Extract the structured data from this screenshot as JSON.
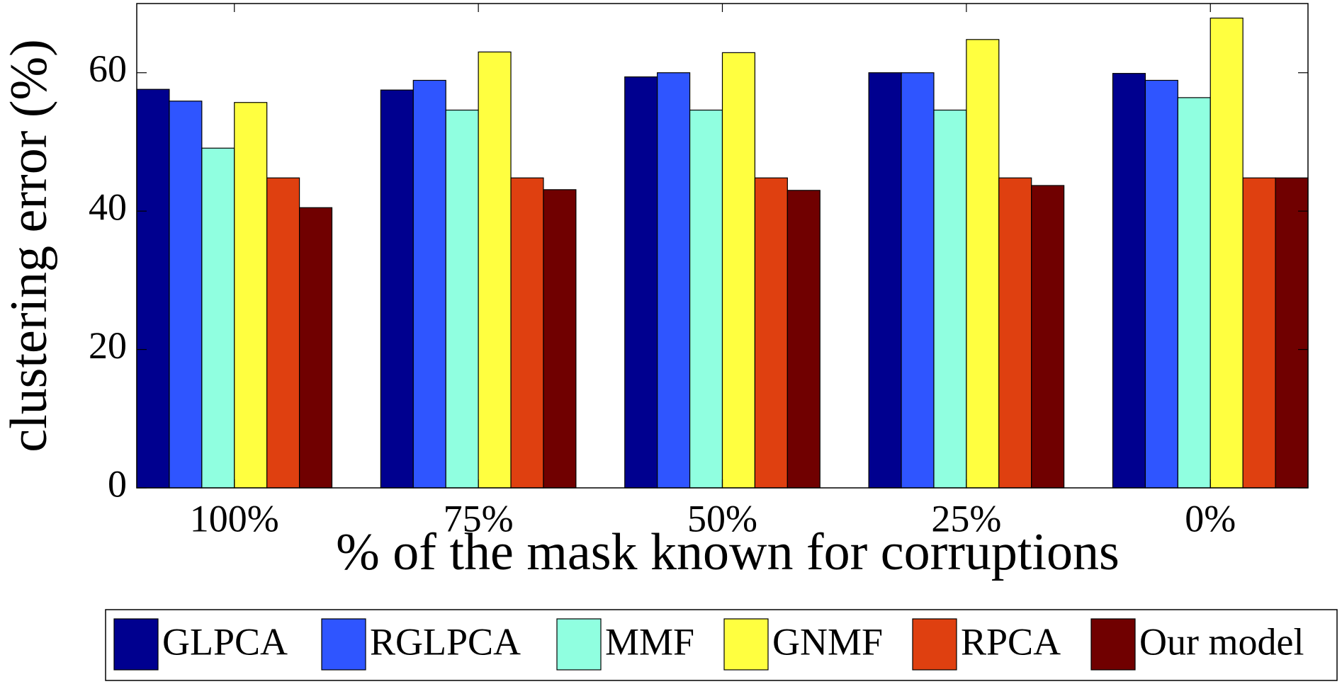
{
  "chart_data": {
    "type": "bar",
    "xlabel": "% of the mask known for corruptions",
    "ylabel": "clustering error (%)",
    "categories": [
      "100%",
      "75%",
      "50%",
      "25%",
      "0%"
    ],
    "series": [
      {
        "name": "GLPCA",
        "color": "#00008f",
        "values": [
          57.6,
          57.5,
          59.4,
          60,
          59.9
        ]
      },
      {
        "name": "RGLPCA",
        "color": "#2f55ff",
        "values": [
          55.9,
          58.9,
          60,
          60,
          58.9
        ]
      },
      {
        "name": "MMF",
        "color": "#90ffe0",
        "values": [
          49.1,
          54.6,
          54.6,
          54.6,
          56.4
        ]
      },
      {
        "name": "GNMF",
        "color": "#ffff40",
        "values": [
          55.7,
          63,
          62.9,
          64.8,
          67.9
        ]
      },
      {
        "name": "RPCA",
        "color": "#df4010",
        "values": [
          44.8,
          44.8,
          44.8,
          44.8,
          44.8
        ]
      },
      {
        "name": "Our model",
        "color": "#700000",
        "values": [
          40.5,
          43.1,
          43,
          43.7,
          44.8
        ]
      }
    ],
    "ylim": [
      0,
      70
    ],
    "yticks": [
      0,
      20,
      40,
      60
    ],
    "legend": "bottom"
  }
}
